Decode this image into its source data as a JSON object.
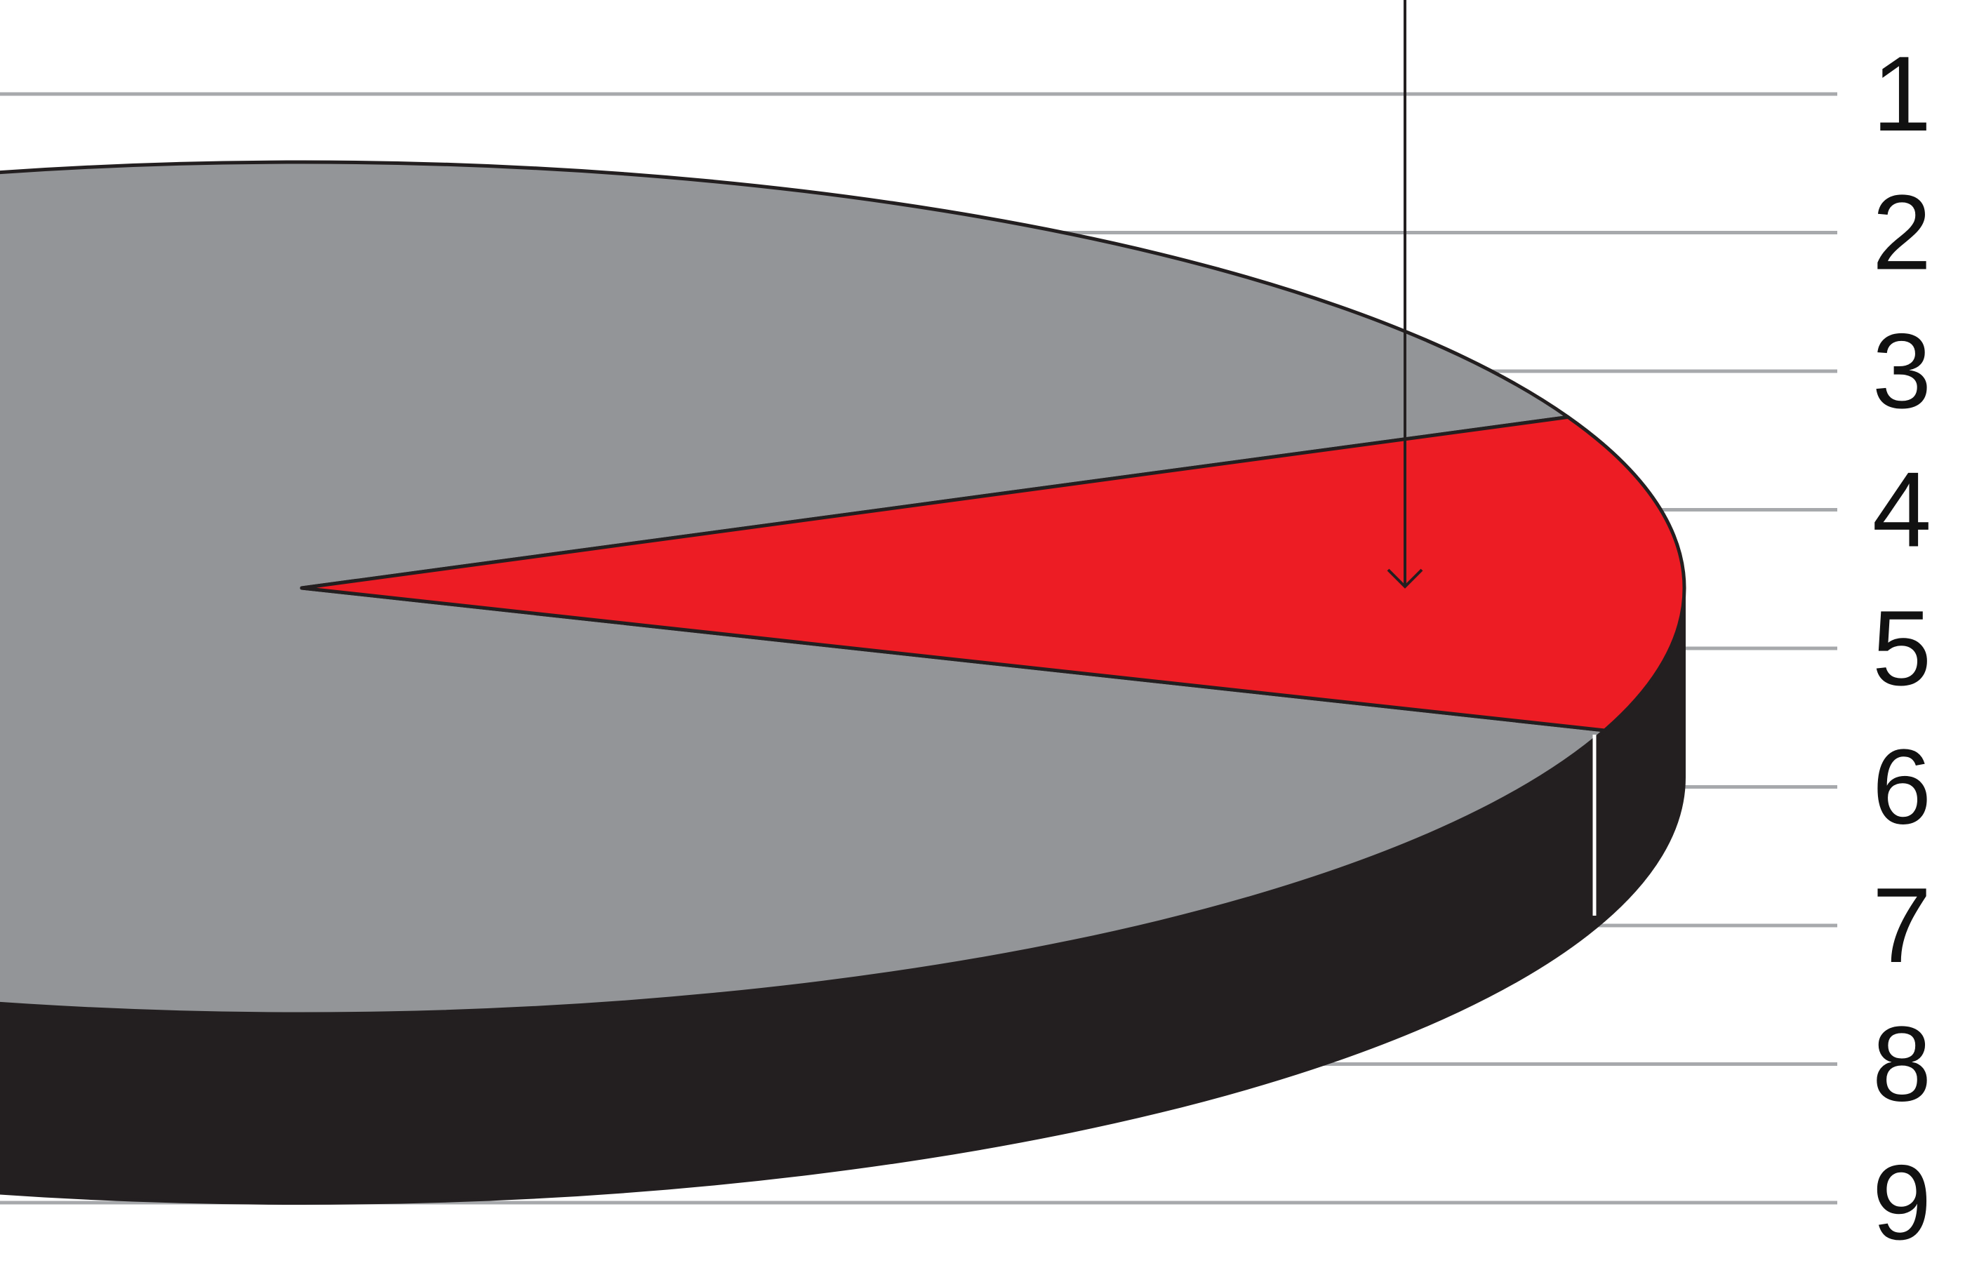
{
  "chart_data": {
    "type": "pie",
    "style": "3d-exploded-perspective",
    "title": "",
    "scale_labels": [
      "1",
      "2",
      "3",
      "4",
      "5",
      "6",
      "7",
      "8",
      "9"
    ],
    "gridlines": true,
    "slices": [
      {
        "value": 0.12,
        "color": "#ed1c24",
        "highlighted": true
      },
      {
        "value": 0.88,
        "color": "#939598",
        "highlighted": false
      }
    ],
    "side_color": "#231f20",
    "pointer_arrow": {
      "target": "red-slice",
      "direction": "down"
    }
  }
}
